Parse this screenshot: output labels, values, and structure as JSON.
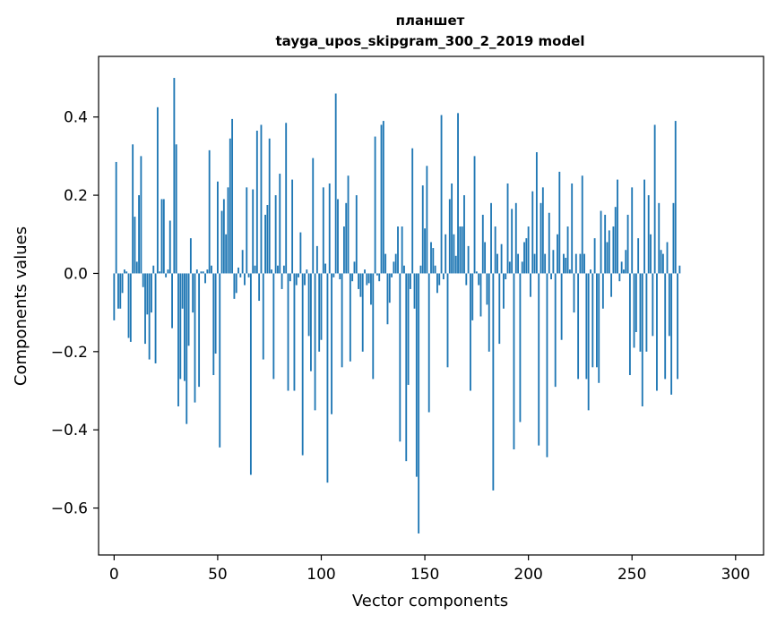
{
  "chart_data": {
    "type": "bar",
    "title": "планшет",
    "subtitle": "tayga_upos_skipgram_300_2_2019 model",
    "xlabel": "Vector components",
    "ylabel": "Components values",
    "xlim": [
      -7.5,
      313.5
    ],
    "ylim": [
      -0.72,
      0.555
    ],
    "x_ticks": [
      0,
      50,
      100,
      150,
      200,
      250,
      300
    ],
    "x_tick_labels": [
      "0",
      "50",
      "100",
      "150",
      "200",
      "250",
      "300"
    ],
    "y_ticks": [
      -0.6,
      -0.4,
      -0.2,
      0.0,
      0.2,
      0.4
    ],
    "y_tick_labels": [
      "−0.6",
      "−0.4",
      "−0.2",
      "0.0",
      "0.2",
      "0.4"
    ],
    "grid": false,
    "bar_color": "#1f77b4",
    "series": [
      {
        "values": [
          -0.12,
          0.285,
          -0.09,
          -0.09,
          -0.05,
          0.01,
          0.005,
          -0.165,
          -0.175,
          0.33,
          0.145,
          0.03,
          0.2,
          0.3,
          -0.035,
          -0.18,
          -0.105,
          -0.22,
          -0.1,
          0.02,
          -0.23,
          0.425,
          0.005,
          0.19,
          0.19,
          -0.01,
          0.01,
          0.135,
          -0.14,
          0.5,
          0.33,
          -0.34,
          -0.27,
          -0.09,
          -0.275,
          -0.385,
          -0.185,
          0.09,
          -0.1,
          -0.33,
          0.01,
          -0.29,
          0.005,
          0.005,
          -0.025,
          0.01,
          0.315,
          0.02,
          -0.26,
          -0.205,
          0.235,
          -0.445,
          0.16,
          0.19,
          0.1,
          0.22,
          0.345,
          0.395,
          -0.065,
          -0.05,
          0.015,
          -0.01,
          0.06,
          -0.03,
          0.22,
          -0.01,
          -0.515,
          0.215,
          0.02,
          0.365,
          -0.07,
          0.38,
          -0.22,
          0.15,
          0.175,
          0.345,
          0.01,
          -0.27,
          0.2,
          0.02,
          0.255,
          -0.04,
          0.02,
          0.385,
          -0.3,
          -0.02,
          0.24,
          -0.3,
          -0.03,
          -0.01,
          0.105,
          -0.465,
          -0.03,
          0.01,
          -0.16,
          -0.25,
          0.295,
          -0.35,
          0.07,
          -0.2,
          -0.17,
          0.22,
          0.025,
          -0.535,
          0.23,
          -0.36,
          -0.01,
          0.46,
          0.19,
          -0.015,
          -0.24,
          0.12,
          0.18,
          0.25,
          -0.225,
          -0.02,
          0.03,
          0.2,
          -0.04,
          -0.06,
          -0.2,
          0.01,
          -0.03,
          -0.025,
          -0.08,
          -0.27,
          0.35,
          -0.005,
          -0.02,
          0.38,
          0.39,
          0.05,
          -0.13,
          -0.075,
          -0.01,
          0.03,
          0.05,
          0.12,
          -0.43,
          0.12,
          0.02,
          -0.48,
          -0.285,
          -0.04,
          0.32,
          -0.09,
          -0.52,
          -0.665,
          0.02,
          0.225,
          0.115,
          0.275,
          -0.355,
          0.08,
          0.065,
          0.02,
          -0.05,
          -0.03,
          0.405,
          -0.015,
          0.1,
          -0.24,
          0.19,
          0.23,
          0.1,
          0.045,
          0.41,
          0.12,
          0.12,
          0.2,
          -0.03,
          0.07,
          -0.3,
          -0.12,
          0.3,
          0.005,
          -0.03,
          -0.11,
          0.15,
          0.08,
          -0.08,
          -0.2,
          0.18,
          -0.555,
          0.12,
          0.05,
          -0.18,
          0.075,
          -0.09,
          -0.015,
          0.23,
          0.03,
          0.165,
          -0.45,
          0.18,
          0.05,
          -0.38,
          0.03,
          0.08,
          0.09,
          0.12,
          -0.06,
          0.21,
          0.05,
          0.31,
          -0.44,
          0.18,
          0.22,
          0.05,
          -0.47,
          0.155,
          -0.015,
          0.06,
          -0.29,
          0.1,
          0.26,
          -0.17,
          0.05,
          0.04,
          0.12,
          0.01,
          0.23,
          -0.1,
          0.05,
          -0.27,
          0.05,
          0.25,
          0.05,
          -0.27,
          -0.35,
          0.01,
          -0.24,
          0.09,
          -0.24,
          -0.28,
          0.16,
          -0.09,
          0.15,
          0.08,
          0.11,
          -0.06,
          0.12,
          0.17,
          0.24,
          -0.02,
          0.03,
          0.01,
          0.06,
          0.15,
          -0.26,
          0.22,
          -0.19,
          -0.15,
          0.09,
          -0.2,
          -0.34,
          0.24,
          -0.2,
          0.2,
          0.1,
          -0.16,
          0.38,
          -0.3,
          0.18,
          0.06,
          0.05,
          -0.27,
          0.08,
          -0.16,
          -0.31,
          0.18,
          0.39,
          -0.27,
          0.02
        ]
      }
    ]
  }
}
